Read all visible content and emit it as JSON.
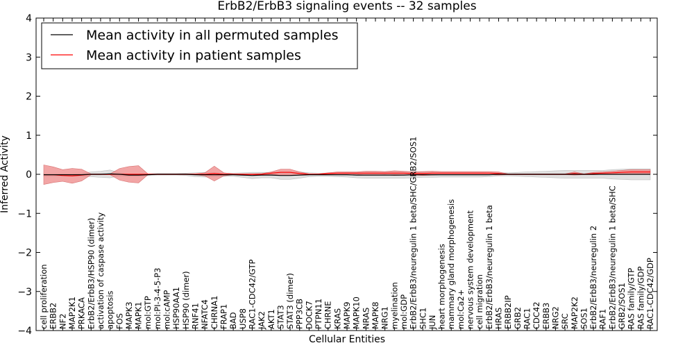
{
  "chart_data": {
    "type": "line",
    "title": "ErbB2/ErbB3 signaling events -- 32 samples",
    "xlabel": "Cellular Entities",
    "ylabel": "Inferred Activity",
    "ylim": [
      -4,
      4
    ],
    "yticks": [
      -4,
      -3,
      -2,
      -1,
      0,
      1,
      2,
      3,
      4
    ],
    "legend_position": "top-left",
    "colors": {
      "patient": "#ff0000",
      "patient_band": "#ee8888",
      "permuted": "#000000",
      "permuted_band": "#dddddd"
    },
    "categories": [
      "cell proliferation",
      "ERBB2",
      "NF2",
      "MAP2K1",
      "PRKACA",
      "ErbB2/ErbB3/HSP90 (dimer)",
      "activation of caspase activity",
      "apoptosis",
      "FOS",
      "MAPK3",
      "MAPK1",
      "mol:GTP",
      "mol:PI-3-4-5-P3",
      "mol:cAMP",
      "HSP90AA1",
      "HSP90 (dimer)",
      "RNF41",
      "NFATC4",
      "CHRNA1",
      "FRAP1",
      "BAD",
      "USP8",
      "RAC1-CDC42/GTP",
      "JAK2",
      "AKT1",
      "STAT3",
      "STAT3 (dimer)",
      "PPP3CB",
      "DOCK7",
      "PTPN11",
      "CHRNE",
      "KRAS",
      "MAPK9",
      "MAPK10",
      "NRAS",
      "MAPK8",
      "NRG1",
      "myelination",
      "mol:GDP",
      "ErbB2/ErbB3/neuregulin 1 beta/SHC/GRB2/SOS1",
      "SHC1",
      "JUN",
      "heart morphogenesis",
      "mammary gland morphogenesis",
      "mol:Ca2+",
      "nervous system development",
      "cell migration",
      "ErbB2/ErbB3/neuregulin 1 beta",
      "HRAS",
      "ERBB2IP",
      "GRB2",
      "RAC1",
      "CDC42",
      "ERBB3",
      "NRG2",
      "SRC",
      "MAP2K2",
      "SOS1",
      "ErbB2/ErbB3/neuregulin 2",
      "RAF1",
      "ErbB2/ErbB3/neuregulin 1 beta/SHC",
      "GRB2/SOS1",
      "RAS family/GTP",
      "RAS family/GDP",
      "RAC1-CDC42/GDP"
    ],
    "series": [
      {
        "name": "Mean activity in all permuted samples",
        "values": [
          -0.01,
          -0.01,
          -0.01,
          -0.01,
          -0.01,
          0.0,
          0.0,
          0.01,
          0.0,
          -0.02,
          -0.02,
          -0.01,
          0.0,
          0.0,
          0.0,
          0.0,
          -0.01,
          -0.01,
          -0.01,
          -0.01,
          -0.01,
          -0.02,
          -0.03,
          -0.02,
          -0.02,
          -0.03,
          -0.03,
          -0.02,
          -0.01,
          -0.01,
          -0.01,
          -0.01,
          -0.01,
          -0.02,
          -0.02,
          -0.02,
          -0.02,
          -0.02,
          -0.02,
          -0.01,
          -0.01,
          -0.01,
          -0.01,
          -0.01,
          -0.01,
          -0.01,
          -0.01,
          -0.01,
          0.0,
          0.0,
          0.0,
          0.0,
          0.0,
          0.0,
          0.0,
          0.0,
          0.0,
          0.0,
          0.0,
          0.0,
          0.0,
          0.0,
          0.0,
          0.0,
          0.0
        ],
        "band": [
          0.03,
          0.03,
          0.03,
          0.03,
          0.04,
          0.06,
          0.08,
          0.1,
          0.04,
          0.03,
          0.03,
          0.02,
          0.02,
          0.02,
          0.02,
          0.03,
          0.05,
          0.06,
          0.05,
          0.04,
          0.04,
          0.06,
          0.08,
          0.07,
          0.07,
          0.1,
          0.1,
          0.08,
          0.05,
          0.04,
          0.04,
          0.05,
          0.06,
          0.07,
          0.08,
          0.08,
          0.08,
          0.08,
          0.08,
          0.08,
          0.07,
          0.07,
          0.06,
          0.06,
          0.06,
          0.06,
          0.06,
          0.05,
          0.04,
          0.04,
          0.05,
          0.06,
          0.07,
          0.08,
          0.09,
          0.1,
          0.1,
          0.1,
          0.1,
          0.1,
          0.12,
          0.13,
          0.14,
          0.14,
          0.14
        ]
      },
      {
        "name": "Mean activity in patient samples",
        "values": [
          -0.01,
          -0.01,
          -0.03,
          -0.04,
          -0.02,
          0.0,
          0.0,
          0.0,
          0.0,
          0.0,
          0.0,
          0.0,
          0.0,
          0.0,
          0.0,
          0.0,
          0.0,
          0.0,
          0.02,
          0.0,
          0.0,
          0.0,
          0.0,
          0.0,
          0.03,
          0.05,
          0.05,
          0.02,
          0.0,
          0.0,
          0.02,
          0.03,
          0.03,
          0.03,
          0.03,
          0.03,
          0.03,
          0.03,
          0.03,
          0.02,
          0.02,
          0.03,
          0.03,
          0.03,
          0.03,
          0.03,
          0.03,
          0.03,
          0.02,
          0.0,
          0.0,
          0.0,
          0.0,
          0.0,
          0.0,
          0.0,
          0.02,
          0.0,
          0.02,
          0.03,
          0.04,
          0.05,
          0.06,
          0.06,
          0.06
        ],
        "band": [
          0.25,
          0.2,
          0.15,
          0.19,
          0.15,
          0.01,
          0.01,
          0.01,
          0.15,
          0.2,
          0.22,
          0.01,
          0.01,
          0.01,
          0.01,
          0.01,
          0.01,
          0.04,
          0.19,
          0.04,
          0.01,
          0.01,
          0.01,
          0.02,
          0.03,
          0.08,
          0.08,
          0.04,
          0.01,
          0.01,
          0.02,
          0.03,
          0.03,
          0.03,
          0.05,
          0.05,
          0.04,
          0.06,
          0.05,
          0.04,
          0.05,
          0.05,
          0.04,
          0.04,
          0.04,
          0.04,
          0.04,
          0.04,
          0.04,
          0.01,
          0.01,
          0.01,
          0.01,
          0.01,
          0.01,
          0.01,
          0.04,
          0.01,
          0.03,
          0.03,
          0.04,
          0.05,
          0.06,
          0.06,
          0.06
        ]
      }
    ]
  }
}
